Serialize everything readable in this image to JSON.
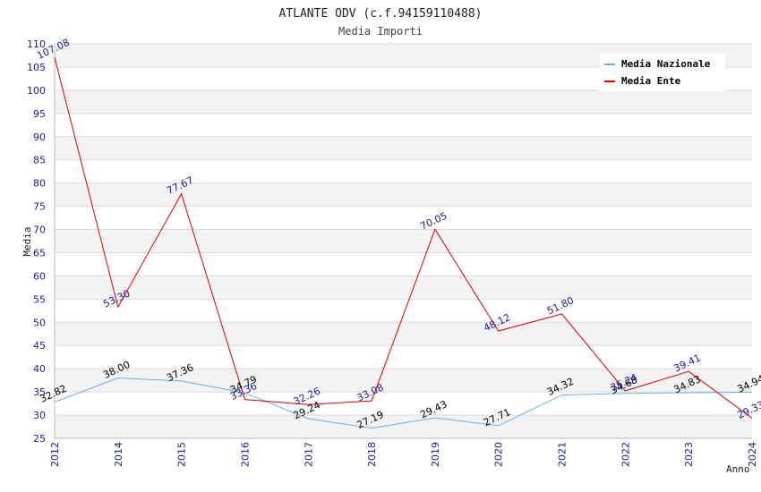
{
  "chart_data": {
    "type": "line",
    "title": "ATLANTE ODV (c.f.94159110488)",
    "subtitle": "Media Importi",
    "xlabel": "Anno",
    "ylabel": "Media",
    "ylim": [
      25,
      110
    ],
    "ytick_step": 5,
    "grid": true,
    "legend_position": "top-right",
    "categories": [
      "2012",
      "2014",
      "2015",
      "2016",
      "2017",
      "2018",
      "2019",
      "2020",
      "2021",
      "2022",
      "2023",
      "2024"
    ],
    "series": [
      {
        "name": "Media Nazionale",
        "color": "#6aaee6",
        "label_color": "#000000",
        "values": [
          32.82,
          38.0,
          37.36,
          34.79,
          29.24,
          27.19,
          29.43,
          27.71,
          34.32,
          34.68,
          34.83,
          34.94
        ],
        "labels": [
          "32.82",
          "38.00",
          "37.36",
          "34.79",
          "29.24",
          "27.19",
          "29.43",
          "27.71",
          "34.32",
          "34.68",
          "34.83",
          "34.94"
        ]
      },
      {
        "name": "Media Ente",
        "color": "#e00000",
        "label_color": "#1a1aa0",
        "values": [
          107.08,
          53.3,
          77.67,
          33.36,
          32.26,
          33.08,
          70.05,
          48.12,
          51.8,
          35.24,
          39.41,
          29.33
        ],
        "labels": [
          "107.08",
          "53.30",
          "77.67",
          "33.36",
          "32.26",
          "33.08",
          "70.05",
          "48.12",
          "51.80",
          "35.24",
          "39.41",
          "29.33"
        ]
      }
    ]
  }
}
